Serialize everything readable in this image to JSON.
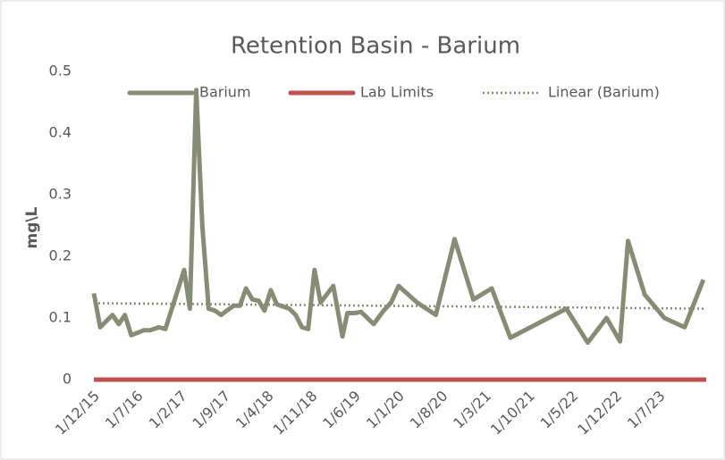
{
  "chart_data": {
    "type": "line",
    "title": "Retention Basin - Barium",
    "y_label": "mg\\L",
    "x": [
      "1/12/15",
      "1/1/16",
      "1/3/16",
      "1/4/16",
      "1/5/16",
      "1/6/16",
      "1/8/16",
      "1/9/16",
      "15/10/16",
      "15/11/16",
      "15/2/17",
      "15/3/17",
      "15/4/17",
      "15/5/17",
      "15/6/17",
      "15/7/17",
      "15/8/17",
      "15/10/17",
      "15/11/17",
      "15/12/17",
      "15/1/18",
      "15/2/18",
      "15/3/18",
      "15/4/18",
      "15/5/18",
      "15/7/18",
      "15/8/18",
      "15/9/18",
      "15/10/18",
      "15/11/18",
      "15/12/18",
      "15/2/19",
      "1/4/19",
      "25/4/19",
      "1/6/19",
      "1/7/19",
      "1/9/19",
      "15/10/19",
      "25/11/19",
      "1/1/20",
      "1/4/20",
      "1/7/20",
      "1/10/20",
      "1/1/21",
      "1/4/21",
      "1/7/21",
      "1/4/22",
      "15/7/22",
      "15/10/22",
      "20/12/22",
      "28/1/23",
      "20/4/23",
      "25/7/23",
      "1/11/23",
      "1/2/24"
    ],
    "series": [
      {
        "name": "Barium",
        "color": "#878d74",
        "style": "solid",
        "values": [
          0.14,
          0.085,
          0.105,
          0.09,
          0.105,
          0.072,
          0.08,
          0.08,
          0.085,
          0.082,
          0.178,
          0.115,
          0.47,
          0.25,
          0.115,
          0.112,
          0.105,
          0.12,
          0.12,
          0.148,
          0.13,
          0.128,
          0.112,
          0.145,
          0.122,
          0.115,
          0.105,
          0.085,
          0.082,
          0.178,
          0.125,
          0.152,
          0.07,
          0.108,
          0.108,
          0.11,
          0.09,
          0.11,
          0.125,
          0.152,
          0.125,
          0.105,
          0.228,
          0.13,
          0.148,
          0.068,
          0.115,
          0.06,
          0.1,
          0.062,
          0.225,
          0.138,
          0.1,
          0.085,
          0.162
        ]
      },
      {
        "name": "Lab Limits",
        "color": "#c0504d",
        "style": "solid",
        "x": [
          "1/12/15",
          "15/2/24"
        ],
        "values": [
          0,
          0
        ]
      },
      {
        "name": "Linear (Barium)",
        "color": "#878d74",
        "style": "dotted",
        "x": [
          "1/12/15",
          "15/2/24"
        ],
        "values": [
          0.124,
          0.115
        ]
      }
    ],
    "xlim": [
      "1/12/15",
      "15/2/24"
    ],
    "xticks": [
      "1/12/15",
      "1/7/16",
      "1/2/17",
      "1/9/17",
      "1/4/18",
      "1/11/18",
      "1/6/19",
      "1/1/20",
      "1/8/20",
      "1/3/21",
      "1/10/21",
      "1/5/22",
      "1/12/22",
      "1/7/23"
    ],
    "ylim": [
      0,
      0.5
    ],
    "yticks": [
      0,
      0.1,
      0.2,
      0.3,
      0.4,
      0.5
    ],
    "grid": false,
    "legend": "top"
  }
}
